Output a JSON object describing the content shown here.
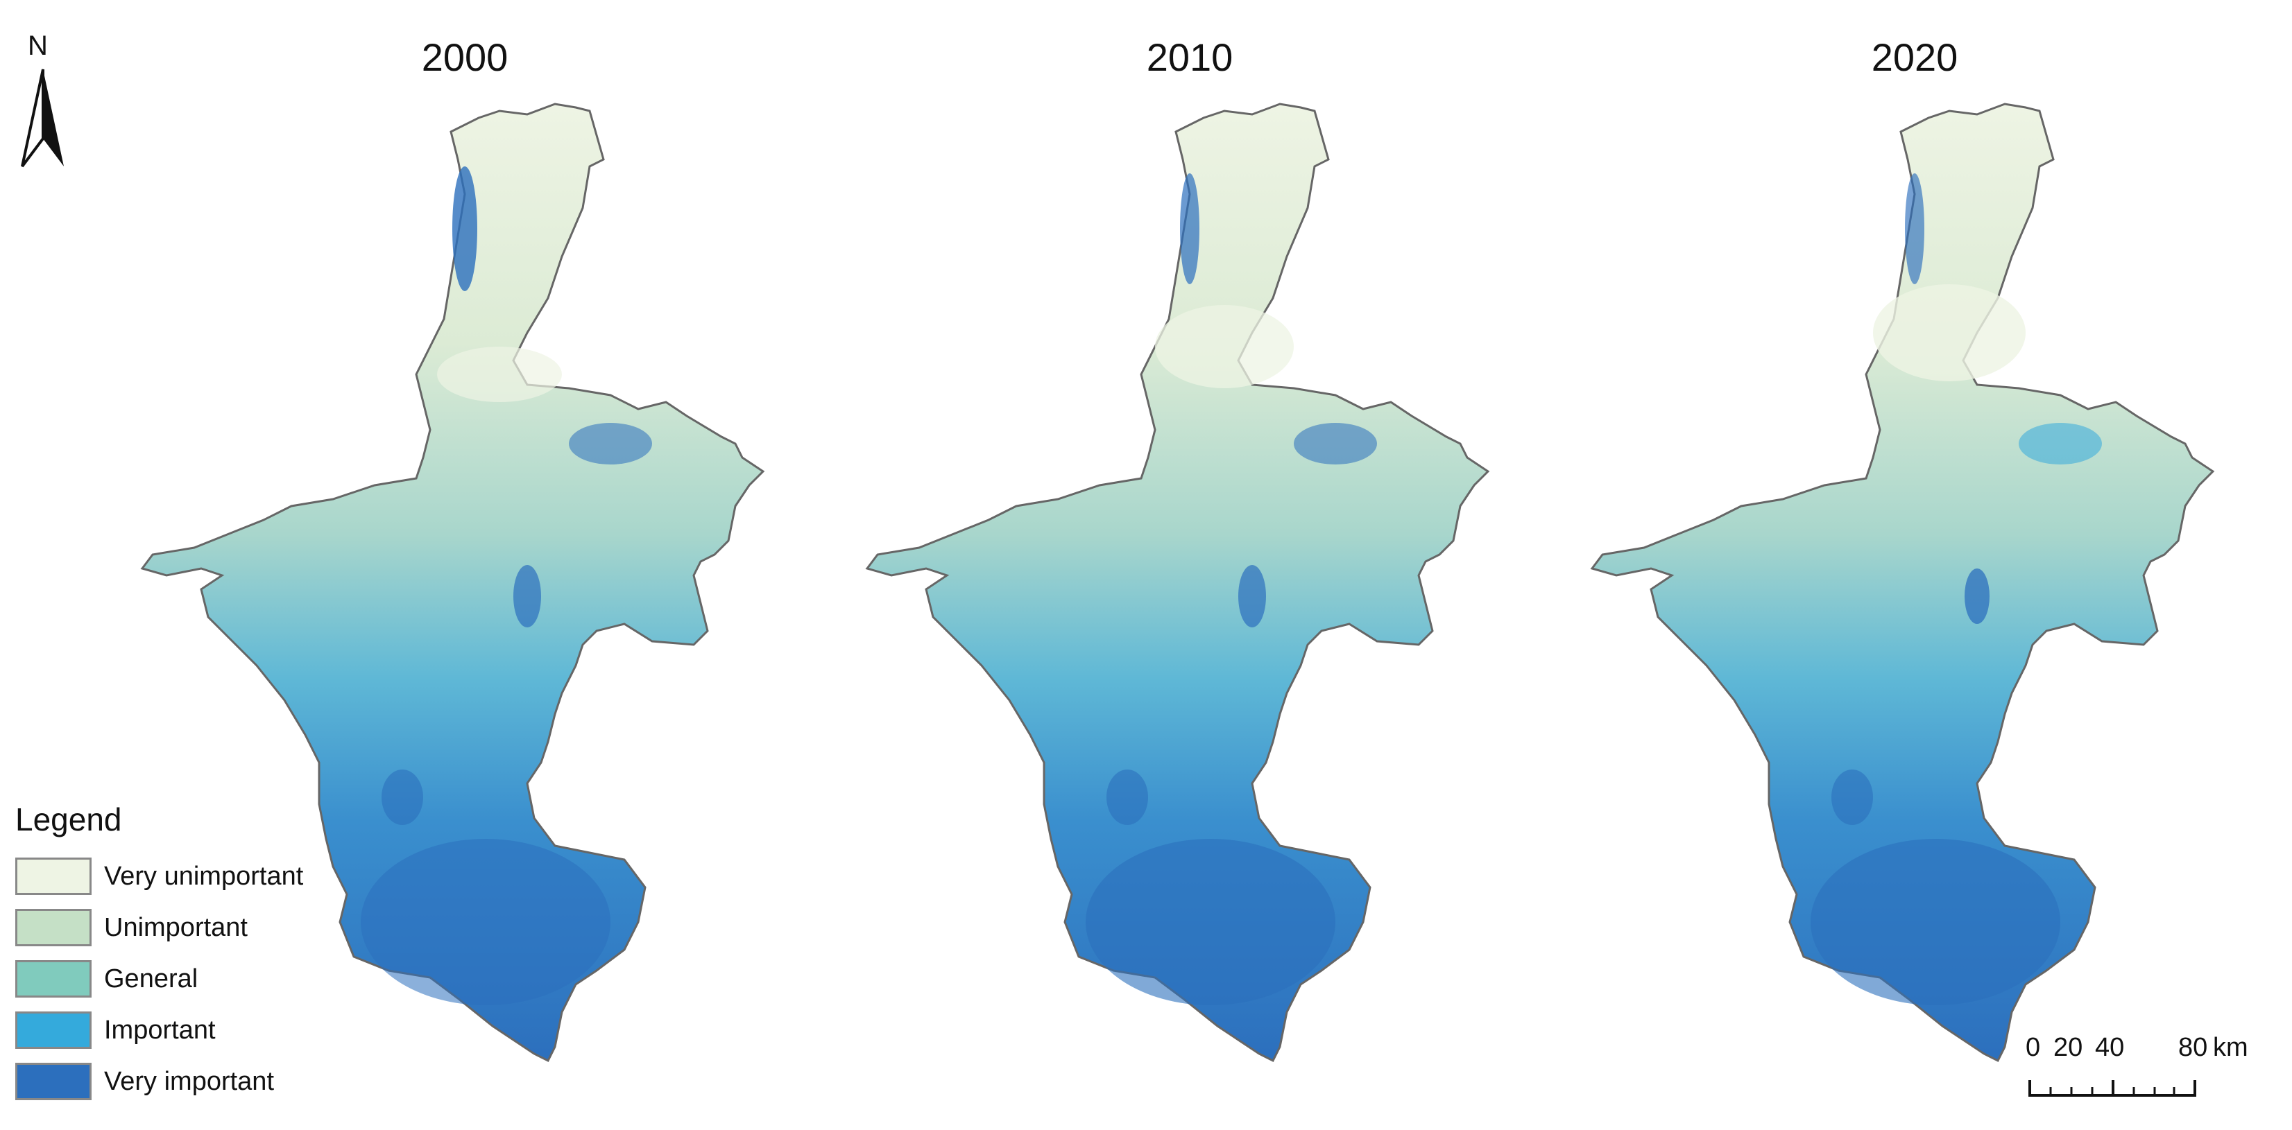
{
  "panels": [
    {
      "title": "2000"
    },
    {
      "title": "2010"
    },
    {
      "title": "2020"
    }
  ],
  "north_arrow": {
    "label": "N"
  },
  "legend": {
    "title": "Legend",
    "items": [
      {
        "label": "Very unimportant",
        "color": "#eef4e4"
      },
      {
        "label": "Unimportant",
        "color": "#c5e0c6"
      },
      {
        "label": "General",
        "color": "#80cbbd"
      },
      {
        "label": "Important",
        "color": "#34aadc"
      },
      {
        "label": "Very important",
        "color": "#2c6fbd"
      }
    ]
  },
  "scale_bar": {
    "ticks": [
      "0",
      "20",
      "40",
      "80"
    ],
    "unit": "km"
  },
  "colors": {
    "outline": "#666666",
    "very_unimportant": "#eef4e4",
    "unimportant": "#c5e0c6",
    "general": "#80cbbd",
    "important": "#34aadc",
    "very_important": "#2c6fbd"
  }
}
